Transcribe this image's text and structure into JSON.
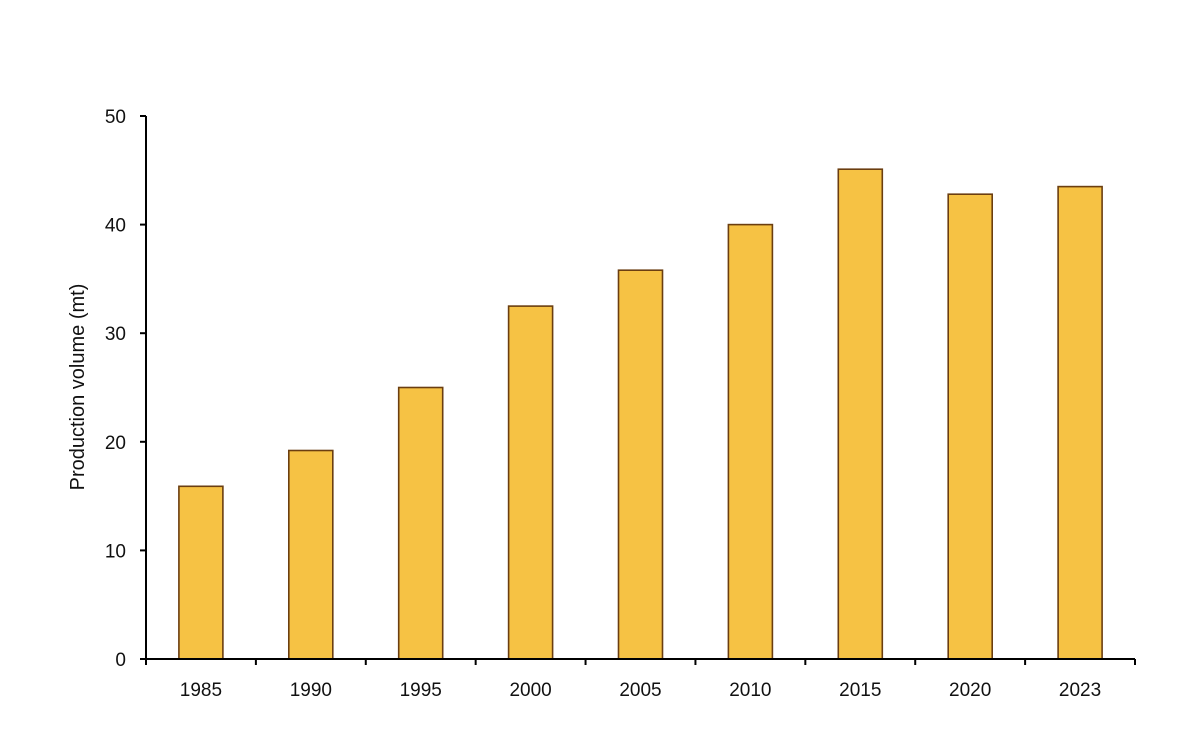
{
  "chart_data": {
    "type": "bar",
    "title": "",
    "xlabel": "",
    "ylabel": "Production volume (mt)",
    "categories": [
      "1985",
      "1990",
      "1995",
      "2000",
      "2005",
      "2010",
      "2015",
      "2020",
      "2023"
    ],
    "values": [
      15.9,
      19.2,
      25.0,
      32.5,
      35.8,
      40.0,
      45.1,
      42.8,
      43.5
    ],
    "ylim": [
      0,
      50
    ],
    "yticks": [
      0,
      10,
      20,
      30,
      40,
      50
    ],
    "grid": false,
    "legend": "none",
    "colors": {
      "bar_fill": "#F6C244",
      "bar_stroke": "#6B3E10",
      "axis": "#000000"
    }
  }
}
